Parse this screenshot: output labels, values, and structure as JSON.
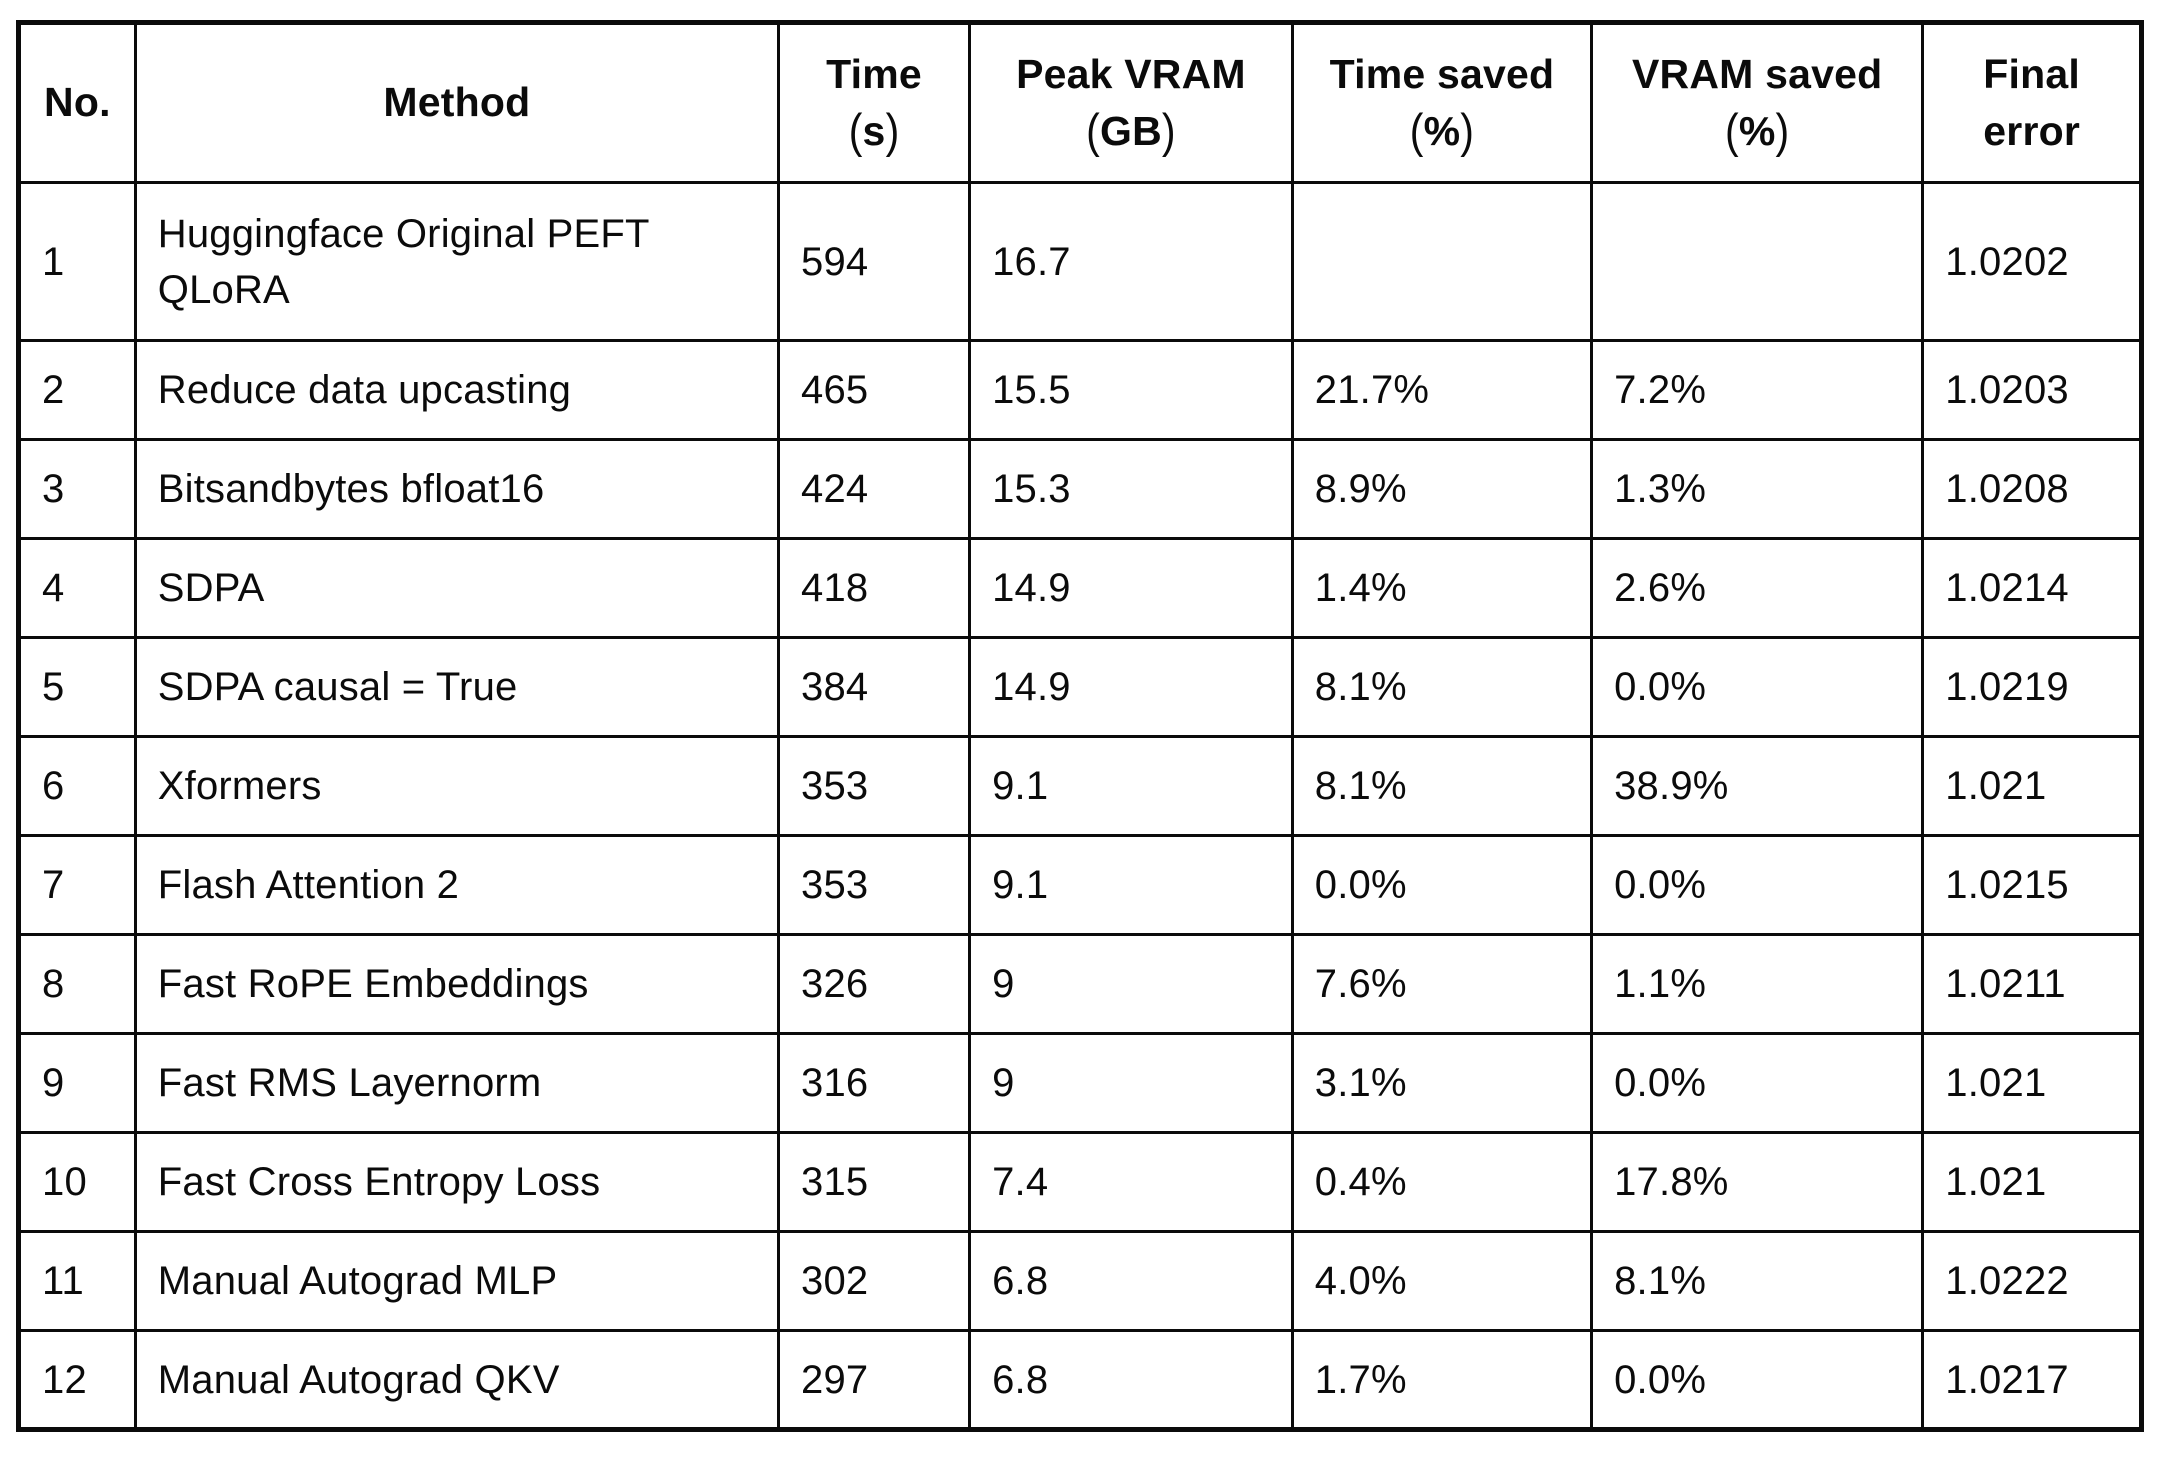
{
  "table": {
    "columns": [
      {
        "id": "no",
        "label": "No.",
        "unit": "",
        "unit_prefix": "",
        "unit_suffix": ""
      },
      {
        "id": "method",
        "label": "Method",
        "unit": "",
        "unit_prefix": "",
        "unit_suffix": ""
      },
      {
        "id": "time_s",
        "label": "Time",
        "unit": "s",
        "unit_prefix": "(",
        "unit_suffix": ")"
      },
      {
        "id": "peak_vram_gb",
        "label": "Peak VRAM",
        "unit": "GB",
        "unit_prefix": "(",
        "unit_suffix": ")"
      },
      {
        "id": "time_saved_pct",
        "label": "Time saved",
        "unit": "%",
        "unit_prefix": "(",
        "unit_suffix": ")"
      },
      {
        "id": "vram_saved_pct",
        "label": "VRAM saved",
        "unit": "%",
        "unit_prefix": "(",
        "unit_suffix": ")"
      },
      {
        "id": "final_error",
        "label": "Final",
        "unit": "error",
        "unit_prefix": "",
        "unit_suffix": ""
      }
    ],
    "rows": [
      {
        "no": "1",
        "method": "Huggingface Original PEFT QLoRA",
        "time_s": "594",
        "peak_vram_gb": "16.7",
        "time_saved_pct": "",
        "vram_saved_pct": "",
        "final_error": "1.0202"
      },
      {
        "no": "2",
        "method": "Reduce data upcasting",
        "time_s": "465",
        "peak_vram_gb": "15.5",
        "time_saved_pct": "21.7%",
        "vram_saved_pct": "7.2%",
        "final_error": "1.0203"
      },
      {
        "no": "3",
        "method": "Bitsandbytes bfloat16",
        "time_s": "424",
        "peak_vram_gb": "15.3",
        "time_saved_pct": "8.9%",
        "vram_saved_pct": "1.3%",
        "final_error": "1.0208"
      },
      {
        "no": "4",
        "method": "SDPA",
        "time_s": "418",
        "peak_vram_gb": "14.9",
        "time_saved_pct": "1.4%",
        "vram_saved_pct": "2.6%",
        "final_error": "1.0214"
      },
      {
        "no": "5",
        "method": "SDPA causal = True",
        "time_s": "384",
        "peak_vram_gb": "14.9",
        "time_saved_pct": "8.1%",
        "vram_saved_pct": "0.0%",
        "final_error": "1.0219"
      },
      {
        "no": "6",
        "method": "Xformers",
        "time_s": "353",
        "peak_vram_gb": "9.1",
        "time_saved_pct": "8.1%",
        "vram_saved_pct": "38.9%",
        "final_error": "1.021"
      },
      {
        "no": "7",
        "method": "Flash Attention 2",
        "time_s": "353",
        "peak_vram_gb": "9.1",
        "time_saved_pct": "0.0%",
        "vram_saved_pct": "0.0%",
        "final_error": "1.0215"
      },
      {
        "no": "8",
        "method": "Fast RoPE Embeddings",
        "time_s": "326",
        "peak_vram_gb": "9",
        "time_saved_pct": "7.6%",
        "vram_saved_pct": "1.1%",
        "final_error": "1.0211"
      },
      {
        "no": "9",
        "method": "Fast RMS Layernorm",
        "time_s": "316",
        "peak_vram_gb": "9",
        "time_saved_pct": "3.1%",
        "vram_saved_pct": "0.0%",
        "final_error": "1.021"
      },
      {
        "no": "10",
        "method": "Fast Cross Entropy Loss",
        "time_s": "315",
        "peak_vram_gb": "7.4",
        "time_saved_pct": "0.4%",
        "vram_saved_pct": "17.8%",
        "final_error": "1.021"
      },
      {
        "no": "11",
        "method": "Manual Autograd MLP",
        "time_s": "302",
        "peak_vram_gb": "6.8",
        "time_saved_pct": "4.0%",
        "vram_saved_pct": "8.1%",
        "final_error": "1.0222"
      },
      {
        "no": "12",
        "method": "Manual Autograd QKV",
        "time_s": "297",
        "peak_vram_gb": "6.8",
        "time_saved_pct": "1.7%",
        "vram_saved_pct": "0.0%",
        "final_error": "1.0217"
      }
    ]
  }
}
